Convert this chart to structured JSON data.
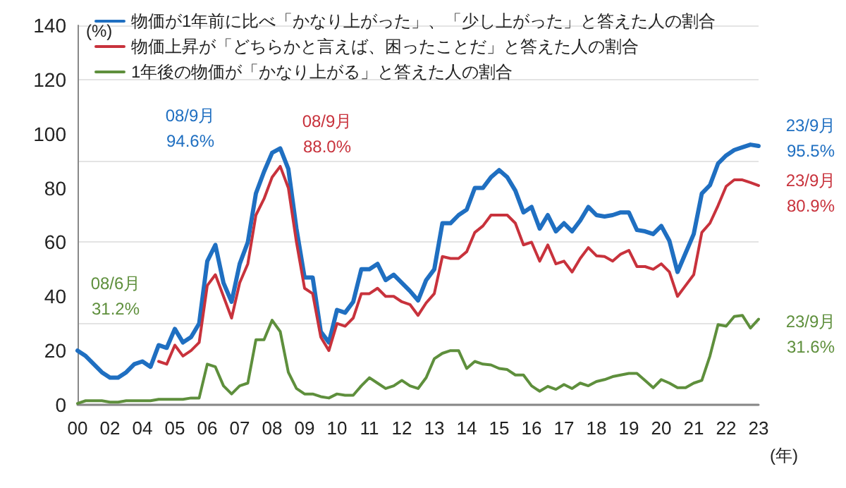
{
  "chart_data": {
    "type": "line",
    "ylabel": "(%)",
    "xlabel": "(年)",
    "categories": [
      "00",
      null,
      null,
      null,
      "02",
      null,
      null,
      null,
      "04",
      null,
      null,
      null,
      "05",
      null,
      null,
      null,
      "06",
      null,
      null,
      null,
      "07",
      null,
      null,
      null,
      "08",
      null,
      null,
      null,
      "09",
      null,
      null,
      null,
      "10",
      null,
      null,
      null,
      "11",
      null,
      null,
      null,
      "12",
      null,
      null,
      null,
      "13",
      null,
      null,
      null,
      "14",
      null,
      null,
      null,
      "15",
      null,
      null,
      null,
      "16",
      null,
      null,
      null,
      "17",
      null,
      null,
      null,
      "18",
      null,
      null,
      null,
      "19",
      null,
      null,
      null,
      "20",
      null,
      null,
      null,
      "21",
      null,
      null,
      null,
      "22",
      null,
      null,
      null,
      "23"
    ],
    "series": [
      {
        "name": "物価が1年前に比べ「かなり上がった」、「少し上がった」と答えた人の割合",
        "color": "#1f6fc1",
        "values": [
          20,
          18,
          15,
          12,
          10,
          10,
          12,
          15,
          16,
          14,
          22,
          21,
          28,
          23,
          25,
          30,
          53,
          59,
          45,
          38,
          52,
          60,
          78,
          86,
          93,
          94.6,
          87,
          65,
          47,
          47,
          27,
          23,
          35,
          34,
          38,
          50,
          50,
          52,
          46,
          48,
          45,
          42,
          38.5,
          46,
          50,
          67,
          67,
          70,
          72,
          80,
          80,
          84,
          86.6,
          84,
          79,
          71,
          73,
          65,
          70,
          64,
          67,
          64,
          68,
          73,
          70,
          69.5,
          70,
          71,
          71,
          64.5,
          64,
          63,
          66,
          60.5,
          49,
          56,
          63,
          78,
          81,
          89,
          92,
          94,
          95,
          96,
          95.5
        ]
      },
      {
        "name": "物価上昇が「どちらかと言えば、困ったことだ」と答えた人の割合",
        "color": "#c8323c",
        "values": [
          null,
          null,
          null,
          null,
          null,
          null,
          null,
          null,
          null,
          null,
          16,
          15,
          22,
          18,
          20,
          23,
          44,
          48,
          40,
          32,
          45,
          52,
          70,
          76,
          84,
          88,
          80,
          60,
          43,
          41,
          25,
          20,
          30,
          29,
          32,
          41,
          41,
          43,
          40,
          40,
          38,
          37,
          33,
          37.6,
          41,
          54.7,
          54,
          54,
          56.5,
          63.6,
          66,
          70,
          70,
          70,
          67,
          59,
          60,
          53,
          59,
          52,
          53,
          49,
          54,
          58,
          55,
          54.7,
          53,
          55.6,
          57,
          51,
          51,
          50,
          52,
          49,
          40,
          44,
          48,
          63.6,
          67,
          73.5,
          80.6,
          83,
          83,
          82,
          80.9
        ]
      },
      {
        "name": "1年後の物価が「かなり上がる」と答えた人の割合",
        "color": "#5e8f3c",
        "values": [
          0.5,
          1.5,
          1.5,
          1.5,
          1,
          1,
          1.5,
          1.5,
          1.5,
          1.5,
          2,
          2,
          2,
          2,
          2.5,
          2.5,
          15,
          14,
          7,
          4,
          7,
          8,
          24,
          24,
          31.2,
          27,
          12,
          6,
          4,
          4,
          3,
          2.5,
          4,
          3.5,
          3.5,
          7,
          10,
          8,
          6,
          7,
          9,
          7,
          6,
          10,
          17,
          19,
          20,
          20,
          13.4,
          16,
          15,
          14.7,
          13.4,
          13,
          11,
          11,
          7,
          5,
          6.8,
          5.7,
          7.5,
          6,
          8,
          7,
          8.6,
          9.3,
          10.4,
          11,
          11.6,
          11.6,
          9,
          6.3,
          9.3,
          8,
          6.3,
          6.3,
          8,
          9,
          18,
          29.6,
          29,
          32.6,
          33,
          28.3,
          31.6
        ]
      }
    ],
    "ylim": [
      0,
      140
    ],
    "yticks": [
      0,
      20,
      40,
      60,
      80,
      100,
      120,
      140
    ],
    "grid": "y",
    "legend": "top left",
    "marker": "none",
    "line_style": "solid",
    "annotations": [
      "08/9月\n94.6%",
      "08/9月\n88.0%",
      "08/6月\n31.2%",
      "23/9月\n95.5%",
      "23/9月\n80.9%",
      "23/9月\n31.6%"
    ]
  }
}
